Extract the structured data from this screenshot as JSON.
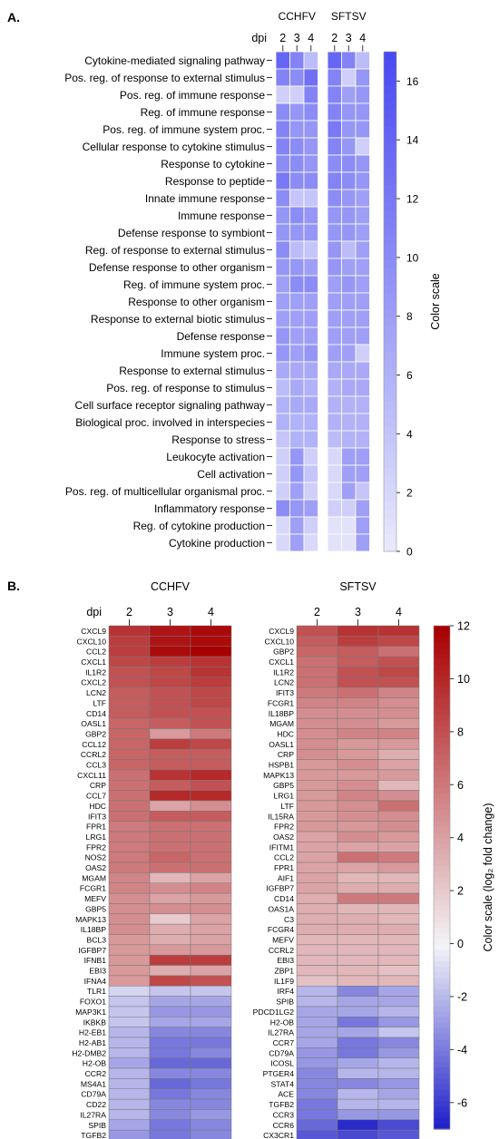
{
  "figure": {
    "panel_a_label": "A.",
    "panel_b_label": "B."
  },
  "chart_data": [
    {
      "type": "heatmap",
      "panel": "A.",
      "title": "",
      "row_header": "dpi",
      "groups": [
        {
          "name": "CCHFV",
          "columns": [
            "2",
            "3",
            "4"
          ]
        },
        {
          "name": "SFTSV",
          "columns": [
            "2",
            "3",
            "4"
          ]
        }
      ],
      "rows": [
        "Cytokine-mediated signaling pathway",
        "Pos. reg. of response to external stimulus",
        "Pos. reg. of immune response",
        "Reg. of immune response",
        "Pos. reg. of immune system proc.",
        "Cellular response to cytokine stimulus",
        "Response to cytokine",
        "Response to peptide",
        "Innate immune response",
        "Immune response",
        "Defense response to symbiont",
        "Reg. of response to external stimulus",
        "Defense response to other organism",
        "Reg. of immune system proc.",
        "Response to other organism",
        "Response to external biotic stimulus",
        "Defense response",
        "Immune system proc.",
        "Response to external stimulus",
        "Pos. reg. of response to stimulus",
        "Cell surface receptor signaling pathway",
        "Biological proc. involved in interspecies",
        "Response to stress",
        "Leukocyte activation",
        "Cell activation",
        "Pos. reg. of multicellular organismal proc.",
        "Inflammatory response",
        "Reg. of cytokine production",
        "Cytokine production"
      ],
      "values": [
        [
          14,
          11,
          5,
          14,
          11,
          5
        ],
        [
          11,
          10,
          13,
          11,
          3,
          9
        ],
        [
          3,
          3,
          11,
          11,
          8,
          9
        ],
        [
          10,
          9,
          10,
          11,
          9,
          9
        ],
        [
          11,
          9,
          9,
          12,
          9,
          9
        ],
        [
          11,
          10,
          9,
          11,
          9,
          3
        ],
        [
          10,
          10,
          9,
          10,
          10,
          9
        ],
        [
          12,
          10,
          10,
          11,
          10,
          9
        ],
        [
          10,
          4,
          4,
          10,
          9,
          8
        ],
        [
          9,
          10,
          9,
          9,
          9,
          8
        ],
        [
          9,
          9,
          9,
          9,
          9,
          8
        ],
        [
          10,
          5,
          4,
          9,
          5,
          8
        ],
        [
          9,
          9,
          8,
          9,
          8,
          8
        ],
        [
          8,
          10,
          10,
          8,
          9,
          8
        ],
        [
          8,
          8,
          8,
          8,
          8,
          8
        ],
        [
          8,
          8,
          8,
          8,
          8,
          8
        ],
        [
          9,
          8,
          8,
          8,
          8,
          8
        ],
        [
          9,
          8,
          9,
          8,
          8,
          3
        ],
        [
          7,
          7,
          7,
          7,
          7,
          7
        ],
        [
          5,
          7,
          6,
          6,
          7,
          7
        ],
        [
          6,
          7,
          7,
          6,
          6,
          6
        ],
        [
          6,
          6,
          6,
          6,
          6,
          6
        ],
        [
          4,
          6,
          6,
          5,
          6,
          6
        ],
        [
          3,
          9,
          3,
          2,
          8,
          8
        ],
        [
          3,
          9,
          4,
          2,
          8,
          8
        ],
        [
          3,
          8,
          3,
          2,
          8,
          4
        ],
        [
          10,
          9,
          8,
          3,
          3,
          8
        ],
        [
          2,
          8,
          3,
          1,
          1,
          8
        ],
        [
          2,
          8,
          2,
          1,
          1,
          8
        ]
      ],
      "colorbar": {
        "label": "Color scale",
        "min": 0,
        "max": 17,
        "ticks": [
          0,
          2,
          4,
          6,
          8,
          10,
          12,
          14,
          16
        ]
      },
      "colors": {
        "low": "#ebebfc",
        "high": "#4a4af2"
      }
    },
    {
      "type": "heatmap",
      "panel": "B.",
      "title": "CCHFV",
      "row_header": "dpi",
      "columns": [
        "2",
        "3",
        "4"
      ],
      "rows": [
        "CXCL9",
        "CXCL10",
        "CCL2",
        "CXCL1",
        "IL1R2",
        "CXCL2",
        "LCN2",
        "LTF",
        "CD14",
        "OASL1",
        "GBP2",
        "CCL12",
        "CCRL2",
        "CCL3",
        "CXCL11",
        "CRP",
        "CCL7",
        "HDC",
        "IFIT3",
        "FPR1",
        "LRG1",
        "FPR2",
        "NOS2",
        "OAS2",
        "MGAM",
        "FCGR1",
        "MEFV",
        "GBP5",
        "MAPK13",
        "IL18BP",
        "BCL3",
        "IGFBP7",
        "IFNB1",
        "EBI3",
        "IFNA4",
        "TLR1",
        "FOXO1",
        "MAP3K1",
        "IKBKB",
        "H2-EB1",
        "H2-AB1",
        "H2-DMB2",
        "H2-OB",
        "CCR2",
        "MS4A1",
        "CD79A",
        "CD22",
        "IL27RA",
        "SPIB",
        "TGFB2"
      ],
      "values": [
        [
          9.5,
          11,
          11.5
        ],
        [
          9,
          11,
          11.5
        ],
        [
          9,
          11.5,
          12
        ],
        [
          8.5,
          9,
          9.5
        ],
        [
          8,
          8.5,
          9.5
        ],
        [
          8,
          8.5,
          9
        ],
        [
          7.5,
          8,
          8.5
        ],
        [
          7.5,
          8,
          8.5
        ],
        [
          7.5,
          8,
          8
        ],
        [
          7,
          7.5,
          8
        ],
        [
          7,
          4.5,
          6
        ],
        [
          7,
          9,
          8.5
        ],
        [
          7,
          7.5,
          7.5
        ],
        [
          7,
          7.5,
          7.5
        ],
        [
          6.5,
          9.5,
          10
        ],
        [
          6.5,
          7.5,
          8
        ],
        [
          6.5,
          10,
          10
        ],
        [
          6.5,
          4,
          5
        ],
        [
          6.5,
          7.5,
          7.5
        ],
        [
          6,
          6.5,
          6.5
        ],
        [
          6,
          6.5,
          6.5
        ],
        [
          6,
          6.5,
          6.5
        ],
        [
          6,
          7,
          6.5
        ],
        [
          6,
          6.5,
          6.5
        ],
        [
          5.5,
          3,
          4
        ],
        [
          5.5,
          5,
          5.5
        ],
        [
          5,
          4,
          4.5
        ],
        [
          5,
          5,
          5
        ],
        [
          5,
          2,
          4
        ],
        [
          5,
          3.5,
          4
        ],
        [
          4.5,
          3.5,
          4
        ],
        [
          4.5,
          4.5,
          4.5
        ],
        [
          4.5,
          9,
          9
        ],
        [
          4.5,
          3.5,
          4
        ],
        [
          4.5,
          8.5,
          8
        ],
        [
          -1,
          -1.5,
          -1.5
        ],
        [
          -1.5,
          -2.5,
          -2.5
        ],
        [
          -1.5,
          -3,
          -3
        ],
        [
          -1.5,
          -2.5,
          -2.5
        ],
        [
          -2,
          -3.5,
          -3.5
        ],
        [
          -2,
          -4,
          -4
        ],
        [
          -2,
          -4,
          -3.5
        ],
        [
          -2.5,
          -4.5,
          -4.5
        ],
        [
          -2,
          -3.5,
          -3.5
        ],
        [
          -2,
          -4.5,
          -4
        ],
        [
          -2,
          -4,
          -3.5
        ],
        [
          -2,
          -3.5,
          -3.5
        ],
        [
          -2,
          -3.5,
          -3
        ],
        [
          -2.5,
          -4,
          -3.5
        ],
        [
          -3,
          -4,
          -3.5
        ]
      ]
    },
    {
      "type": "heatmap",
      "panel": "B.",
      "title": "SFTSV",
      "columns": [
        "2",
        "3",
        "4"
      ],
      "rows": [
        "CXCL9",
        "CXCL10",
        "GBP2",
        "CXCL1",
        "IL1R2",
        "LCN2",
        "IFIT3",
        "FCGR1",
        "IL18BP",
        "MGAM",
        "HDC",
        "OASL1",
        "CRP",
        "HSPB1",
        "MAPK13",
        "GBP5",
        "LRG1",
        "LTF",
        "IL15RA",
        "FPR2",
        "OAS2",
        "IFITM1",
        "CCL2",
        "FPR1",
        "AIF1",
        "IGFBP7",
        "CD14",
        "OAS1A",
        "C3",
        "FCGR4",
        "MEFV",
        "CCRL2",
        "EBI3",
        "ZBP1",
        "IL1F9",
        "IRF4",
        "SPIB",
        "PDCD1LG2",
        "H2-OB",
        "IL27RA",
        "CCR7",
        "CD79A",
        "ICOSL",
        "PTGER4",
        "STAT4",
        "ACE",
        "TGFB2",
        "CCR3",
        "CCR6",
        "CX3CR1"
      ],
      "values": [
        [
          8,
          9.5,
          9.5
        ],
        [
          7.5,
          9,
          8.5
        ],
        [
          7,
          7.5,
          6.5
        ],
        [
          6.5,
          7.5,
          8
        ],
        [
          6.5,
          8,
          8.5
        ],
        [
          6.5,
          8,
          8
        ],
        [
          6,
          6.5,
          5.5
        ],
        [
          5.5,
          5.5,
          5
        ],
        [
          5,
          5,
          5
        ],
        [
          5,
          5,
          4.5
        ],
        [
          5,
          5.5,
          5.5
        ],
        [
          5,
          4.5,
          4.5
        ],
        [
          5,
          4.5,
          3.5
        ],
        [
          4.5,
          5,
          4
        ],
        [
          4.5,
          4.5,
          4.5
        ],
        [
          4.5,
          5,
          3
        ],
        [
          4.5,
          5.5,
          5
        ],
        [
          4.5,
          5,
          6.5
        ],
        [
          4.5,
          5,
          5
        ],
        [
          4.5,
          4.5,
          5
        ],
        [
          4,
          5,
          4.5
        ],
        [
          4,
          4,
          4
        ],
        [
          4,
          6.5,
          6
        ],
        [
          4,
          4,
          4.5
        ],
        [
          4,
          3,
          3
        ],
        [
          4,
          3.5,
          3.5
        ],
        [
          3.5,
          6,
          6
        ],
        [
          3.5,
          3,
          3
        ],
        [
          3.5,
          3.5,
          3
        ],
        [
          3.5,
          3.5,
          3.5
        ],
        [
          3,
          3,
          3
        ],
        [
          3,
          3,
          3
        ],
        [
          3,
          3,
          3
        ],
        [
          3,
          3,
          2.5
        ],
        [
          2.5,
          3,
          3
        ],
        [
          -2,
          -3.5,
          -2.5
        ],
        [
          -2,
          -2.5,
          -2.5
        ],
        [
          -2.5,
          -2.5,
          -2
        ],
        [
          -2.5,
          -4,
          -3
        ],
        [
          -2.5,
          -2.5,
          -1.5
        ],
        [
          -2.5,
          -4,
          -3.5
        ],
        [
          -3,
          -4,
          -3
        ],
        [
          -3,
          -2.5,
          -2
        ],
        [
          -3.5,
          -2,
          -2
        ],
        [
          -3.5,
          -3.5,
          -3
        ],
        [
          -3.5,
          -2,
          -2.5
        ],
        [
          -4,
          -2,
          -2
        ],
        [
          -4,
          -3,
          -3
        ],
        [
          -4.5,
          -6.5,
          -5.5
        ],
        [
          -5,
          -5.5,
          -5
        ]
      ],
      "colorbar": {
        "label": "Color scale (log₂ fold change)",
        "min": -7,
        "max": 12,
        "ticks": [
          12,
          10,
          8,
          6,
          4,
          2,
          0,
          -2,
          -4,
          -6
        ]
      },
      "colors": {
        "low": "#1a1ac8",
        "mid": "#f4f4f8",
        "high": "#a80000"
      }
    }
  ]
}
